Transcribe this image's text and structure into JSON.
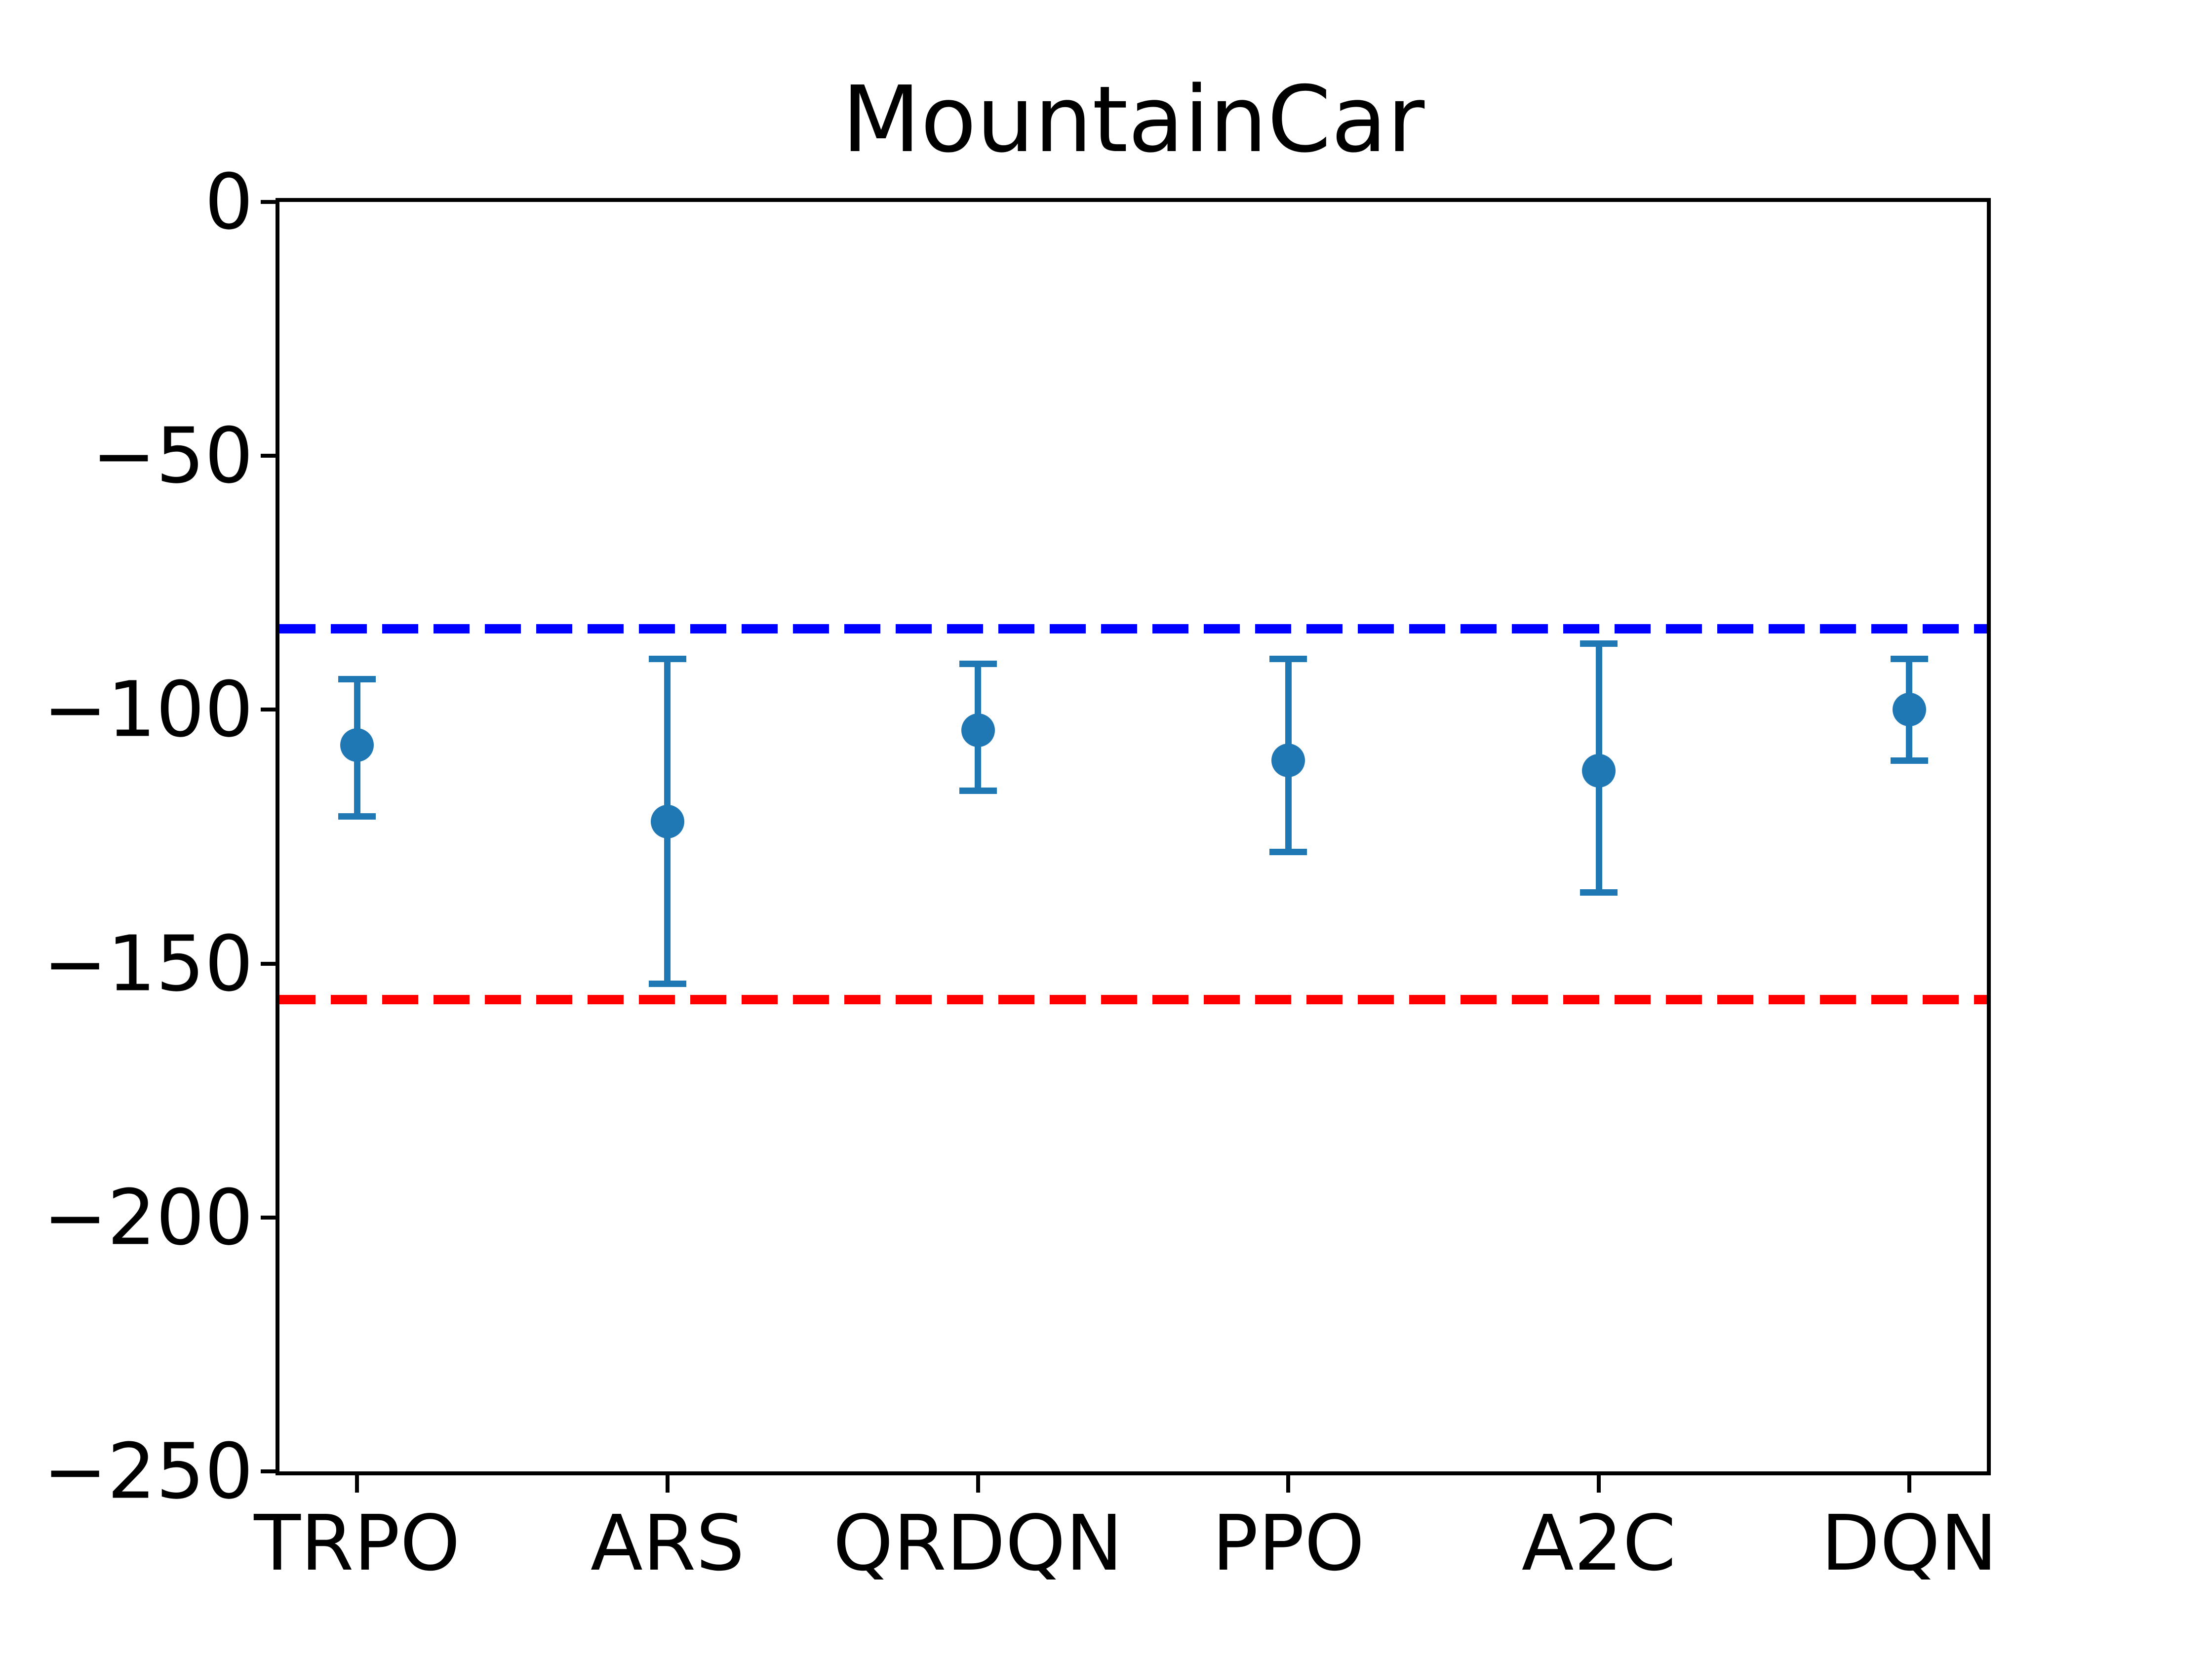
{
  "chart_data": {
    "type": "scatter",
    "title": "MountainCar",
    "categories": [
      "TRPO",
      "ARS",
      "QRDQN",
      "PPO",
      "A2C",
      "DQN"
    ],
    "x": [
      0,
      1,
      2,
      3,
      4,
      5
    ],
    "xlim": [
      -0.25,
      5.25
    ],
    "ylim": [
      -250,
      0
    ],
    "yticks": [
      0,
      -50,
      -100,
      -150,
      -200,
      -250
    ],
    "ytick_labels": [
      "0",
      "−50",
      "−100",
      "−150",
      "−200",
      "−250"
    ],
    "grid": false,
    "legend": null,
    "points": [
      {
        "label": "TRPO",
        "mean": -107,
        "upper": -94,
        "lower": -121
      },
      {
        "label": "ARS",
        "mean": -122,
        "upper": -90,
        "lower": -154
      },
      {
        "label": "QRDQN",
        "mean": -104,
        "upper": -91,
        "lower": -116
      },
      {
        "label": "PPO",
        "mean": -110,
        "upper": -90,
        "lower": -128
      },
      {
        "label": "A2C",
        "mean": -112,
        "upper": -87,
        "lower": -136
      },
      {
        "label": "DQN",
        "mean": -100,
        "upper": -90,
        "lower": -110
      }
    ],
    "hlines": [
      {
        "name": "upper-threshold-line",
        "y": -84,
        "color": "#0000ff",
        "style": "dashed"
      },
      {
        "name": "lower-baseline-line",
        "y": -157,
        "color": "#ff0000",
        "style": "dashed"
      }
    ],
    "marker_color": "#1f77b4",
    "axis_color": "#000000"
  }
}
